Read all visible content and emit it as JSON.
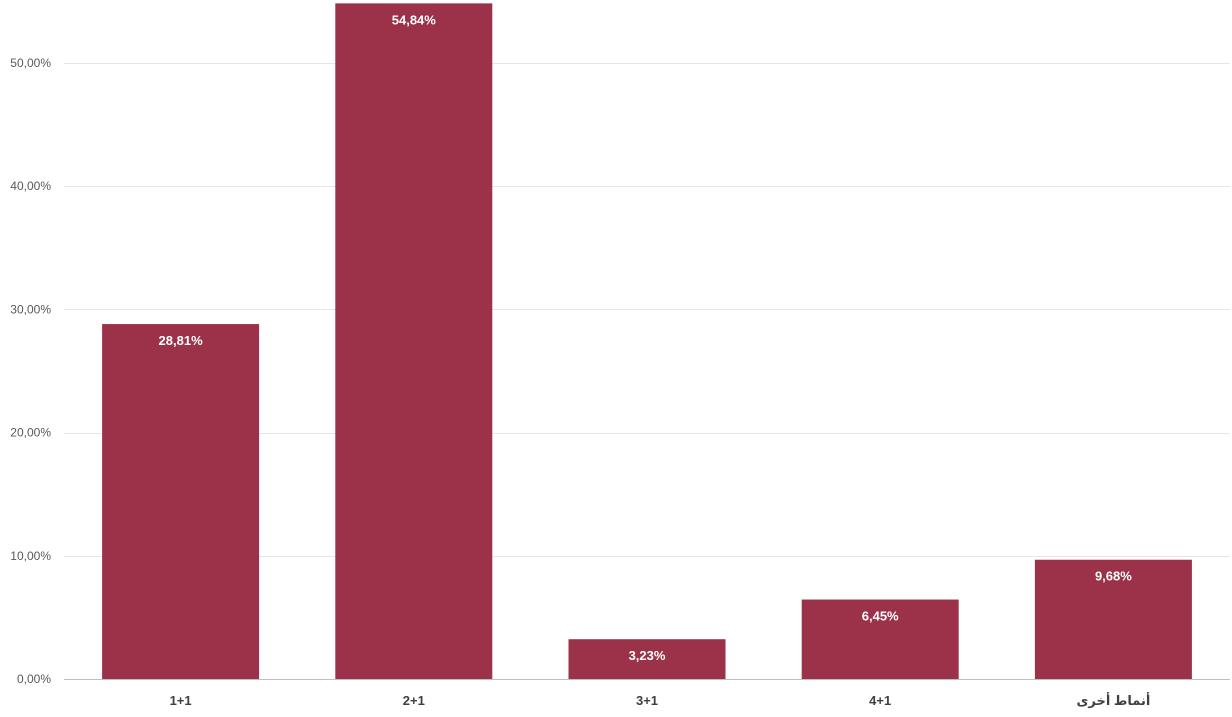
{
  "chart_data": {
    "type": "bar",
    "title": "",
    "xlabel": "",
    "ylabel": "",
    "categories": [
      "1+1",
      "2+1",
      "3+1",
      "4+1",
      "أنماط أخرى"
    ],
    "values": [
      28.81,
      54.84,
      3.23,
      6.45,
      9.68
    ],
    "data_labels": [
      "28,81%",
      "54,84%",
      "3,23%",
      "6,45%",
      "9,68%"
    ],
    "ylim": [
      0,
      55
    ],
    "yticks": [
      0,
      10,
      20,
      30,
      40,
      50
    ],
    "ytick_labels": [
      "0,00%",
      "10,00%",
      "20,00%",
      "30,00%",
      "40,00%",
      "50,00%"
    ],
    "grid": true,
    "legend": "none",
    "bar_color": "#9b3249"
  }
}
